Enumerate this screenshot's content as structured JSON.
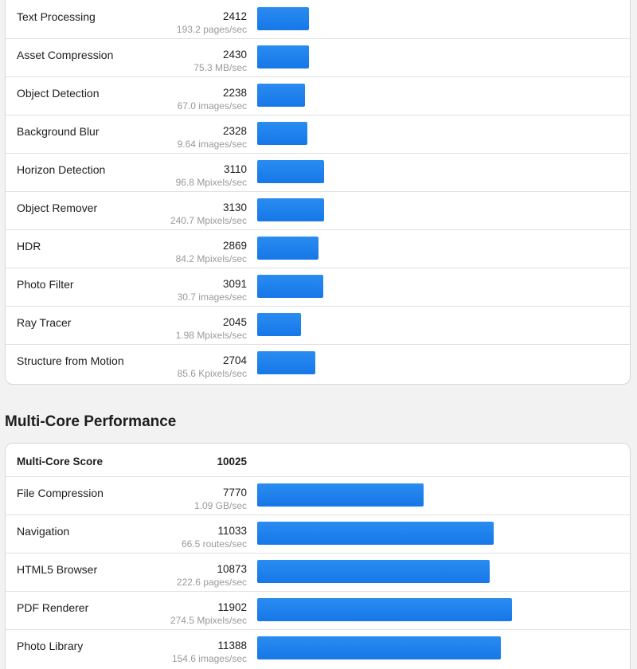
{
  "single_core": {
    "rows": [
      {
        "name": "Text Processing",
        "score": "2412",
        "unit": "193.2 pages/sec"
      },
      {
        "name": "Asset Compression",
        "score": "2430",
        "unit": "75.3 MB/sec"
      },
      {
        "name": "Object Detection",
        "score": "2238",
        "unit": "67.0 images/sec"
      },
      {
        "name": "Background Blur",
        "score": "2328",
        "unit": "9.64 images/sec"
      },
      {
        "name": "Horizon Detection",
        "score": "3110",
        "unit": "96.8 Mpixels/sec"
      },
      {
        "name": "Object Remover",
        "score": "3130",
        "unit": "240.7 Mpixels/sec"
      },
      {
        "name": "HDR",
        "score": "2869",
        "unit": "84.2 Mpixels/sec"
      },
      {
        "name": "Photo Filter",
        "score": "3091",
        "unit": "30.7 images/sec"
      },
      {
        "name": "Ray Tracer",
        "score": "2045",
        "unit": "1.98 Mpixels/sec"
      },
      {
        "name": "Structure from Motion",
        "score": "2704",
        "unit": "85.6 Kpixels/sec"
      }
    ]
  },
  "multi_core": {
    "title": "Multi-Core Performance",
    "score_label": "Multi-Core Score",
    "score_value": "10025",
    "rows": [
      {
        "name": "File Compression",
        "score": "7770",
        "unit": "1.09 GB/sec"
      },
      {
        "name": "Navigation",
        "score": "11033",
        "unit": "66.5 routes/sec"
      },
      {
        "name": "HTML5 Browser",
        "score": "10873",
        "unit": "222.6 pages/sec"
      },
      {
        "name": "PDF Renderer",
        "score": "11902",
        "unit": "274.5 Mpixels/sec"
      },
      {
        "name": "Photo Library",
        "score": "11388",
        "unit": "154.6 images/sec"
      }
    ]
  },
  "bar_scale_max": 14500,
  "colors": {
    "bar": "#1a7fec",
    "background": "#f2f2f2",
    "card": "#ffffff"
  }
}
